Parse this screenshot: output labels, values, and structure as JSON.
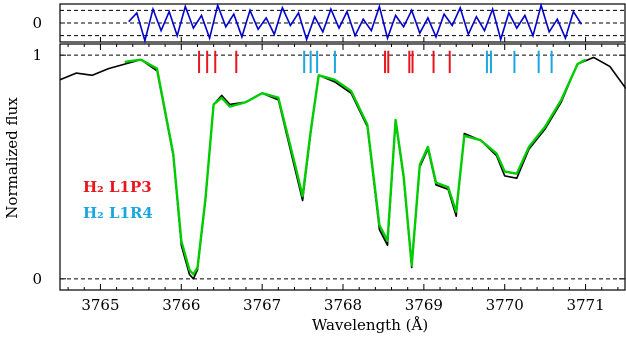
{
  "chart_data": {
    "type": "line",
    "xlabel": "Wavelength (Å)",
    "ylabel": "Normalized flux",
    "xlim": [
      3764.5,
      3771.5
    ],
    "x_ticks": [
      "3765",
      "3766",
      "3767",
      "3768",
      "3769",
      "3770",
      "3771"
    ],
    "main_panel": {
      "ylim": [
        -0.05,
        1.05
      ],
      "y_ticks": [
        "0",
        "1"
      ],
      "reference_lines": [
        0,
        1
      ],
      "series": [
        {
          "role": "observed-spectrum",
          "color": "#000000",
          "x": [
            3764.5,
            3764.7,
            3764.9,
            3765.1,
            3765.3,
            3765.5,
            3765.7,
            3765.9,
            3766.0,
            3766.1,
            3766.15,
            3766.2,
            3766.3,
            3766.4,
            3766.5,
            3766.6,
            3766.8,
            3767.0,
            3767.2,
            3767.4,
            3767.5,
            3767.6,
            3767.7,
            3767.9,
            3768.1,
            3768.3,
            3768.45,
            3768.55,
            3768.65,
            3768.75,
            3768.85,
            3768.95,
            3769.05,
            3769.15,
            3769.3,
            3769.4,
            3769.5,
            3769.7,
            3769.9,
            3770.0,
            3770.15,
            3770.3,
            3770.5,
            3770.7,
            3770.9,
            3771.1,
            3771.3,
            3771.5
          ],
          "y": [
            0.89,
            0.92,
            0.91,
            0.94,
            0.96,
            0.98,
            0.93,
            0.55,
            0.15,
            0.02,
            0.0,
            0.04,
            0.35,
            0.78,
            0.82,
            0.78,
            0.79,
            0.83,
            0.8,
            0.5,
            0.35,
            0.65,
            0.91,
            0.88,
            0.83,
            0.68,
            0.22,
            0.15,
            0.7,
            0.45,
            0.05,
            0.5,
            0.58,
            0.42,
            0.4,
            0.28,
            0.65,
            0.62,
            0.55,
            0.46,
            0.45,
            0.58,
            0.67,
            0.79,
            0.96,
            0.99,
            0.95,
            0.85
          ]
        },
        {
          "role": "model-fit",
          "color": "#00cc00",
          "x": [
            3765.3,
            3765.5,
            3765.7,
            3765.9,
            3766.0,
            3766.1,
            3766.15,
            3766.2,
            3766.3,
            3766.4,
            3766.5,
            3766.6,
            3766.8,
            3767.0,
            3767.2,
            3767.4,
            3767.5,
            3767.6,
            3767.7,
            3767.9,
            3768.1,
            3768.3,
            3768.45,
            3768.55,
            3768.65,
            3768.75,
            3768.85,
            3768.95,
            3769.05,
            3769.15,
            3769.3,
            3769.4,
            3769.5,
            3769.7,
            3769.9,
            3770.0,
            3770.15,
            3770.3,
            3770.5,
            3770.7,
            3770.9,
            3771.0
          ],
          "y": [
            0.97,
            0.98,
            0.94,
            0.56,
            0.17,
            0.04,
            0.02,
            0.05,
            0.36,
            0.78,
            0.81,
            0.77,
            0.79,
            0.83,
            0.81,
            0.52,
            0.37,
            0.66,
            0.91,
            0.89,
            0.84,
            0.69,
            0.24,
            0.17,
            0.71,
            0.46,
            0.06,
            0.51,
            0.59,
            0.43,
            0.41,
            0.3,
            0.64,
            0.62,
            0.56,
            0.48,
            0.47,
            0.59,
            0.68,
            0.8,
            0.96,
            0.98
          ]
        }
      ],
      "line_markers": [
        {
          "name": "H₂ L1P3",
          "color": "#e8161e",
          "x": [
            3766.22,
            3766.32,
            3766.42,
            3766.68,
            3768.52,
            3768.56,
            3768.82,
            3768.86,
            3769.12,
            3769.32
          ]
        },
        {
          "name": "H₂ L1R4",
          "color": "#1aa7e0",
          "x": [
            3767.52,
            3767.6,
            3767.68,
            3767.9,
            3769.78,
            3769.83,
            3770.12,
            3770.42,
            3770.58
          ]
        }
      ],
      "legend": [
        {
          "label": "H₂ L1P3",
          "color": "#e8161e"
        },
        {
          "label": "H₂ L1R4",
          "color": "#1aa7e0"
        }
      ],
      "legend_placement": "left"
    },
    "residual_panel": {
      "y_ticks": [
        "0"
      ],
      "ylim": [
        -1.5,
        1.5
      ],
      "reference_lines": [
        -1,
        0,
        1
      ],
      "series": [
        {
          "role": "residuals",
          "color": "#0000cc",
          "x": [
            3765.35,
            3765.45,
            3765.55,
            3765.65,
            3765.75,
            3765.85,
            3765.95,
            3766.05,
            3766.15,
            3766.25,
            3766.35,
            3766.45,
            3766.55,
            3766.65,
            3766.75,
            3766.85,
            3766.95,
            3767.05,
            3767.15,
            3767.25,
            3767.35,
            3767.45,
            3767.55,
            3767.65,
            3767.75,
            3767.85,
            3767.95,
            3768.05,
            3768.15,
            3768.25,
            3768.35,
            3768.45,
            3768.55,
            3768.65,
            3768.75,
            3768.85,
            3768.95,
            3769.05,
            3769.15,
            3769.25,
            3769.35,
            3769.45,
            3769.55,
            3769.65,
            3769.75,
            3769.85,
            3769.95,
            3770.05,
            3770.15,
            3770.25,
            3770.35,
            3770.45,
            3770.55,
            3770.65,
            3770.75,
            3770.85,
            3770.95
          ],
          "y": [
            0.1,
            0.8,
            -1.4,
            1.1,
            -0.6,
            0.9,
            -1.0,
            1.3,
            -0.4,
            0.6,
            -1.2,
            1.4,
            -0.3,
            0.7,
            -1.1,
            1.0,
            -0.5,
            0.4,
            -0.9,
            1.2,
            -0.2,
            0.8,
            -1.3,
            0.5,
            -0.7,
            1.1,
            -0.4,
            0.9,
            -1.0,
            0.3,
            -0.6,
            1.3,
            -1.2,
            0.6,
            -0.3,
            1.0,
            -0.8,
            0.4,
            -1.1,
            0.7,
            -0.2,
            1.2,
            -0.9,
            0.5,
            -0.6,
            1.1,
            -1.3,
            0.8,
            -0.4,
            0.6,
            -1.0,
            1.4,
            -0.7,
            0.3,
            -1.2,
            0.9,
            -0.1
          ]
        }
      ]
    }
  }
}
